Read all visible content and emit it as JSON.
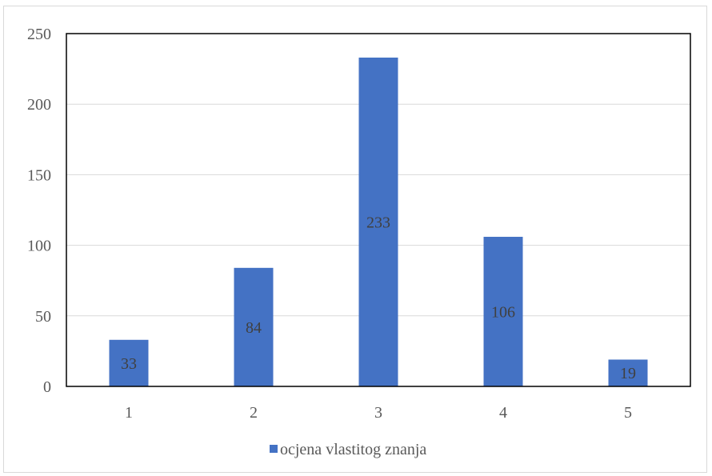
{
  "chart_data": {
    "type": "bar",
    "categories": [
      "1",
      "2",
      "3",
      "4",
      "5"
    ],
    "series": [
      {
        "name": "ocjena vlastitog znanja",
        "values": [
          33,
          84,
          233,
          106,
          19
        ],
        "color": "#4472c4"
      }
    ],
    "ylim": [
      0,
      250
    ],
    "yticks": [
      0,
      50,
      100,
      150,
      200,
      250
    ],
    "grid": true,
    "legend_position": "bottom",
    "data_labels": true,
    "colors": {
      "bar": "#4472c4",
      "grid": "#d9d9d9",
      "plot_border": "#000000",
      "text": "#595959"
    }
  }
}
